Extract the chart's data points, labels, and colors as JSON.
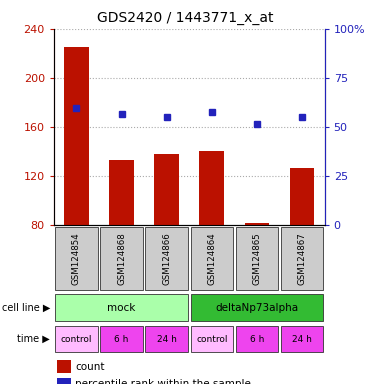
{
  "title": "GDS2420 / 1443771_x_at",
  "samples": [
    "GSM124854",
    "GSM124868",
    "GSM124866",
    "GSM124864",
    "GSM124865",
    "GSM124867"
  ],
  "counts": [
    225,
    133,
    138,
    140,
    81,
    126
  ],
  "percentile_ranks": [
    175,
    170,
    168,
    172,
    162,
    168
  ],
  "ylim_left": [
    80,
    240
  ],
  "ylim_right": [
    0,
    100
  ],
  "yticks_left": [
    80,
    120,
    160,
    200,
    240
  ],
  "yticks_right": [
    0,
    25,
    50,
    75,
    100
  ],
  "ytick_labels_right": [
    "0",
    "25",
    "50",
    "75",
    "100%"
  ],
  "bar_color": "#bb1100",
  "dot_color": "#2222bb",
  "cell_line_labels": [
    "mock",
    "deltaNp73alpha"
  ],
  "cell_line_spans": [
    [
      0,
      3
    ],
    [
      3,
      6
    ]
  ],
  "cell_line_colors": [
    "#aaffaa",
    "#33bb33"
  ],
  "time_labels": [
    "control",
    "6 h",
    "24 h",
    "control",
    "6 h",
    "24 h"
  ],
  "time_colors_light": "#ffbbff",
  "time_colors_dark": "#ee44ee",
  "legend_count_color": "#bb1100",
  "legend_dot_color": "#2222bb",
  "background_color": "#ffffff",
  "plot_bg_color": "#ffffff",
  "grid_color": "#aaaaaa",
  "bar_bottom": 80
}
